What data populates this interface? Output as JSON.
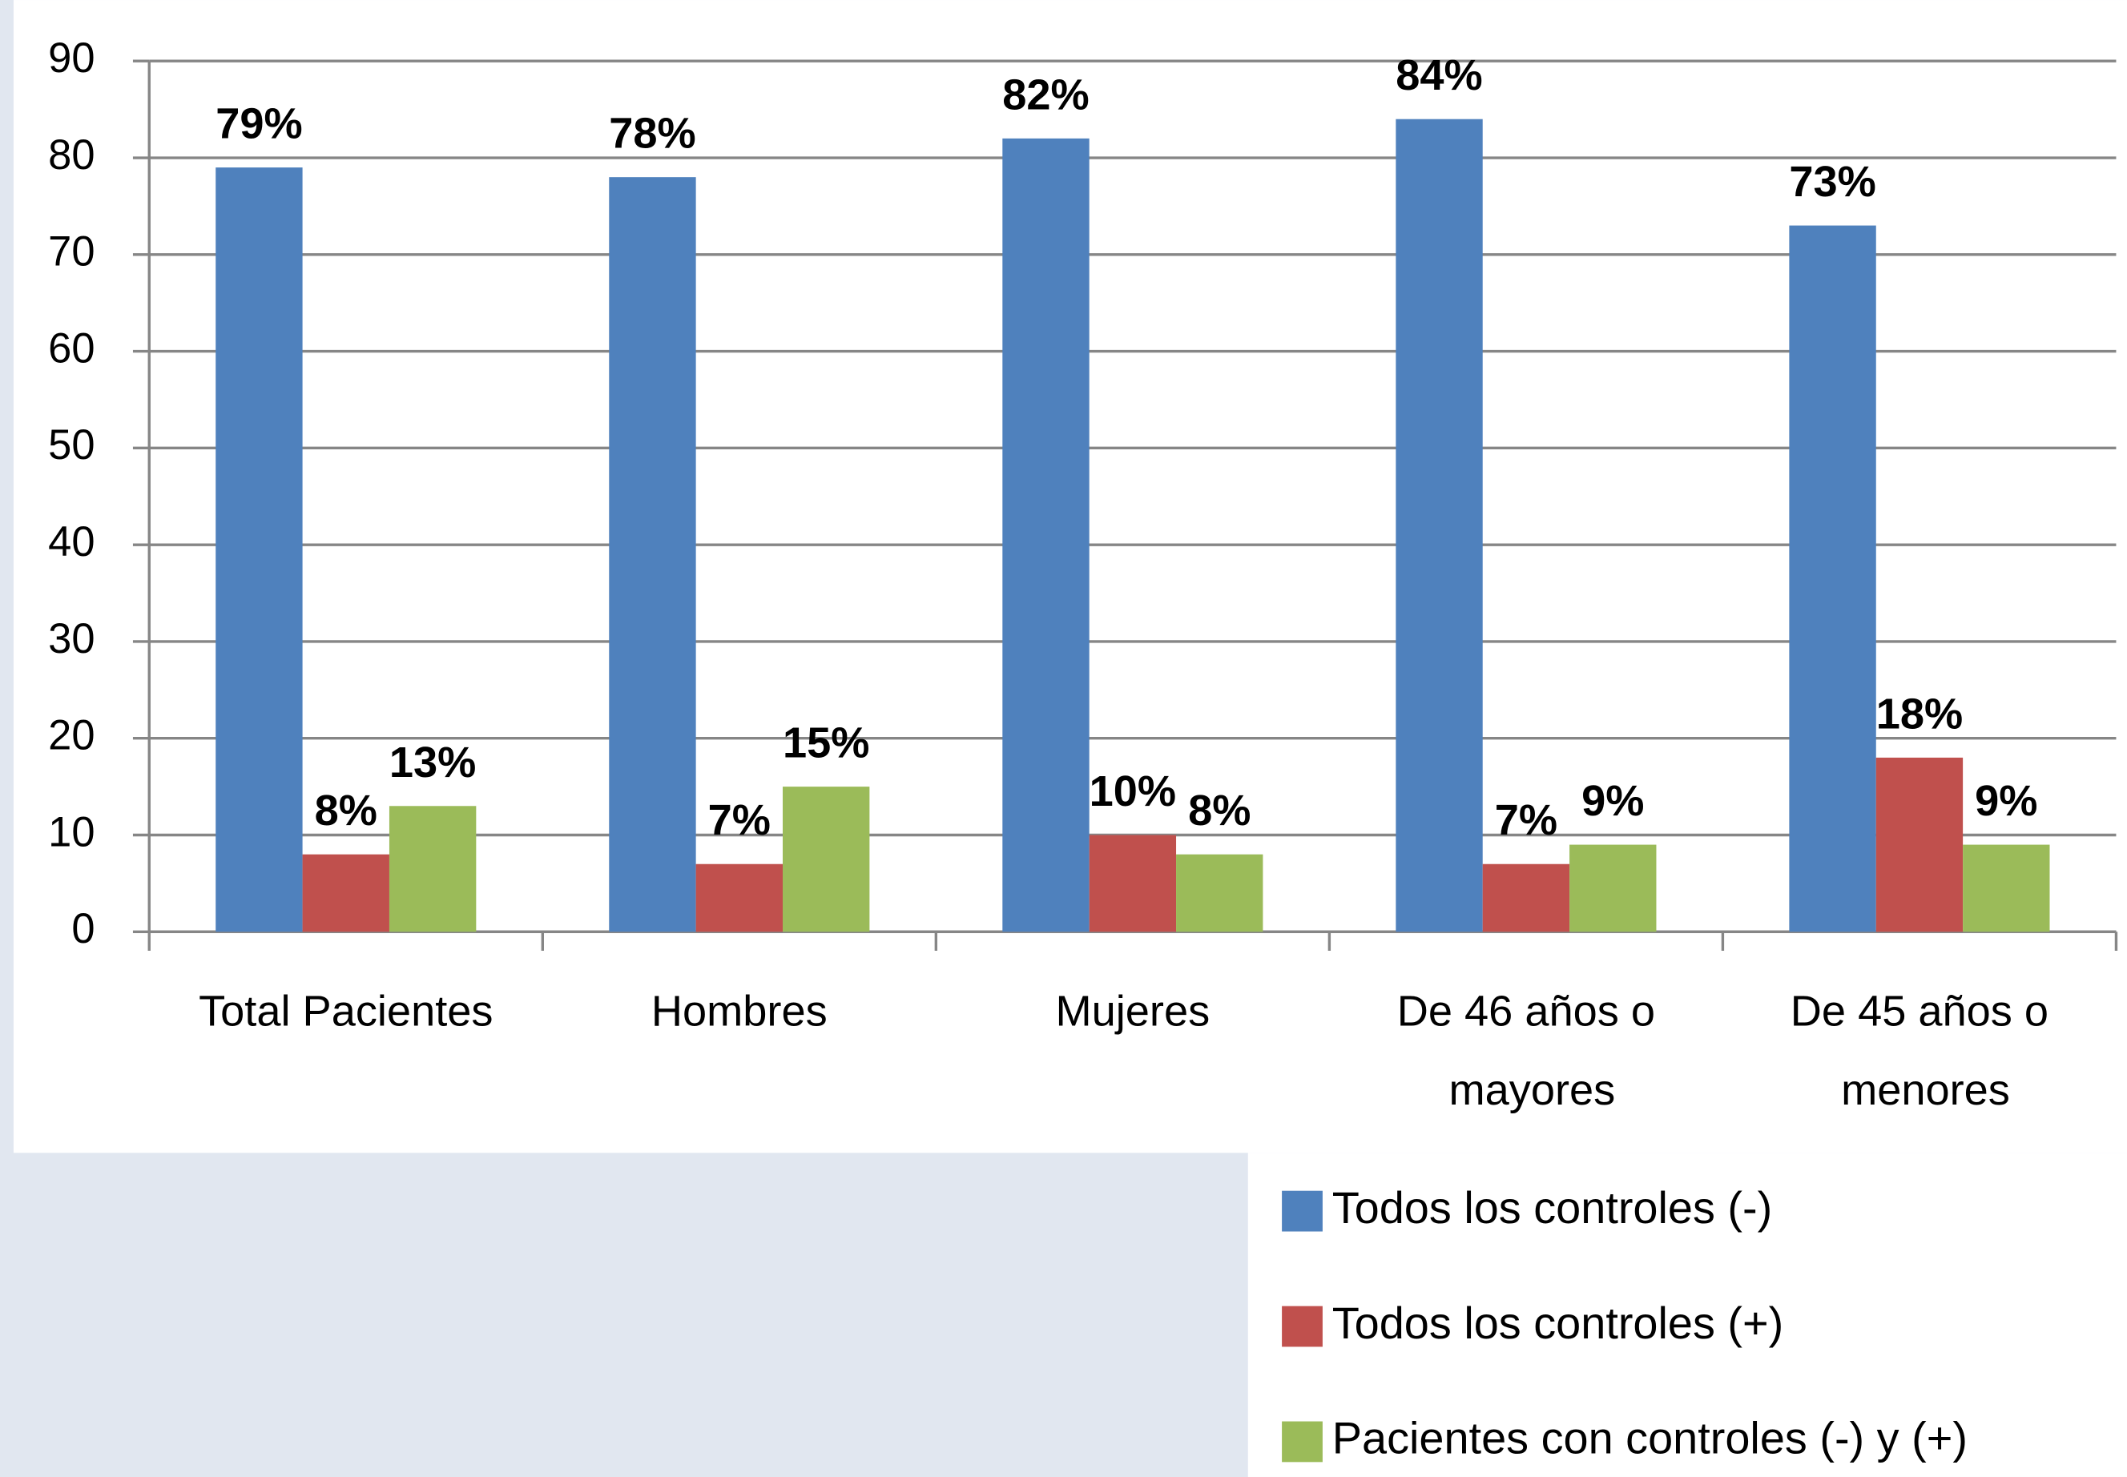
{
  "chart_data": {
    "type": "bar",
    "categories": [
      "Total Pacientes",
      "Hombres",
      "Mujeres",
      "De 46 años o mayores",
      "De 45 años o menores"
    ],
    "series": [
      {
        "name": "Todos los controles (-)",
        "color": "#4f81bd",
        "values": [
          79,
          78,
          82,
          84,
          73
        ],
        "value_labels": [
          "79%",
          "78%",
          "82%",
          "84%",
          "73%"
        ]
      },
      {
        "name": "Todos los controles (+)",
        "color": "#c0504d",
        "values": [
          8,
          7,
          10,
          7,
          18
        ],
        "value_labels": [
          "8%",
          "7%",
          "10%",
          "7%",
          "18%"
        ]
      },
      {
        "name": "Pacientes con controles (-) y (+)",
        "color": "#9bbb59",
        "values": [
          13,
          15,
          8,
          9,
          9
        ],
        "value_labels": [
          "13%",
          "15%",
          "8%",
          "9%",
          "9%"
        ]
      }
    ],
    "ylim": [
      0,
      90
    ],
    "yticks": [
      0,
      10,
      20,
      30,
      40,
      50,
      60,
      70,
      80,
      90
    ],
    "grid": true,
    "legend": "bottom-right"
  }
}
